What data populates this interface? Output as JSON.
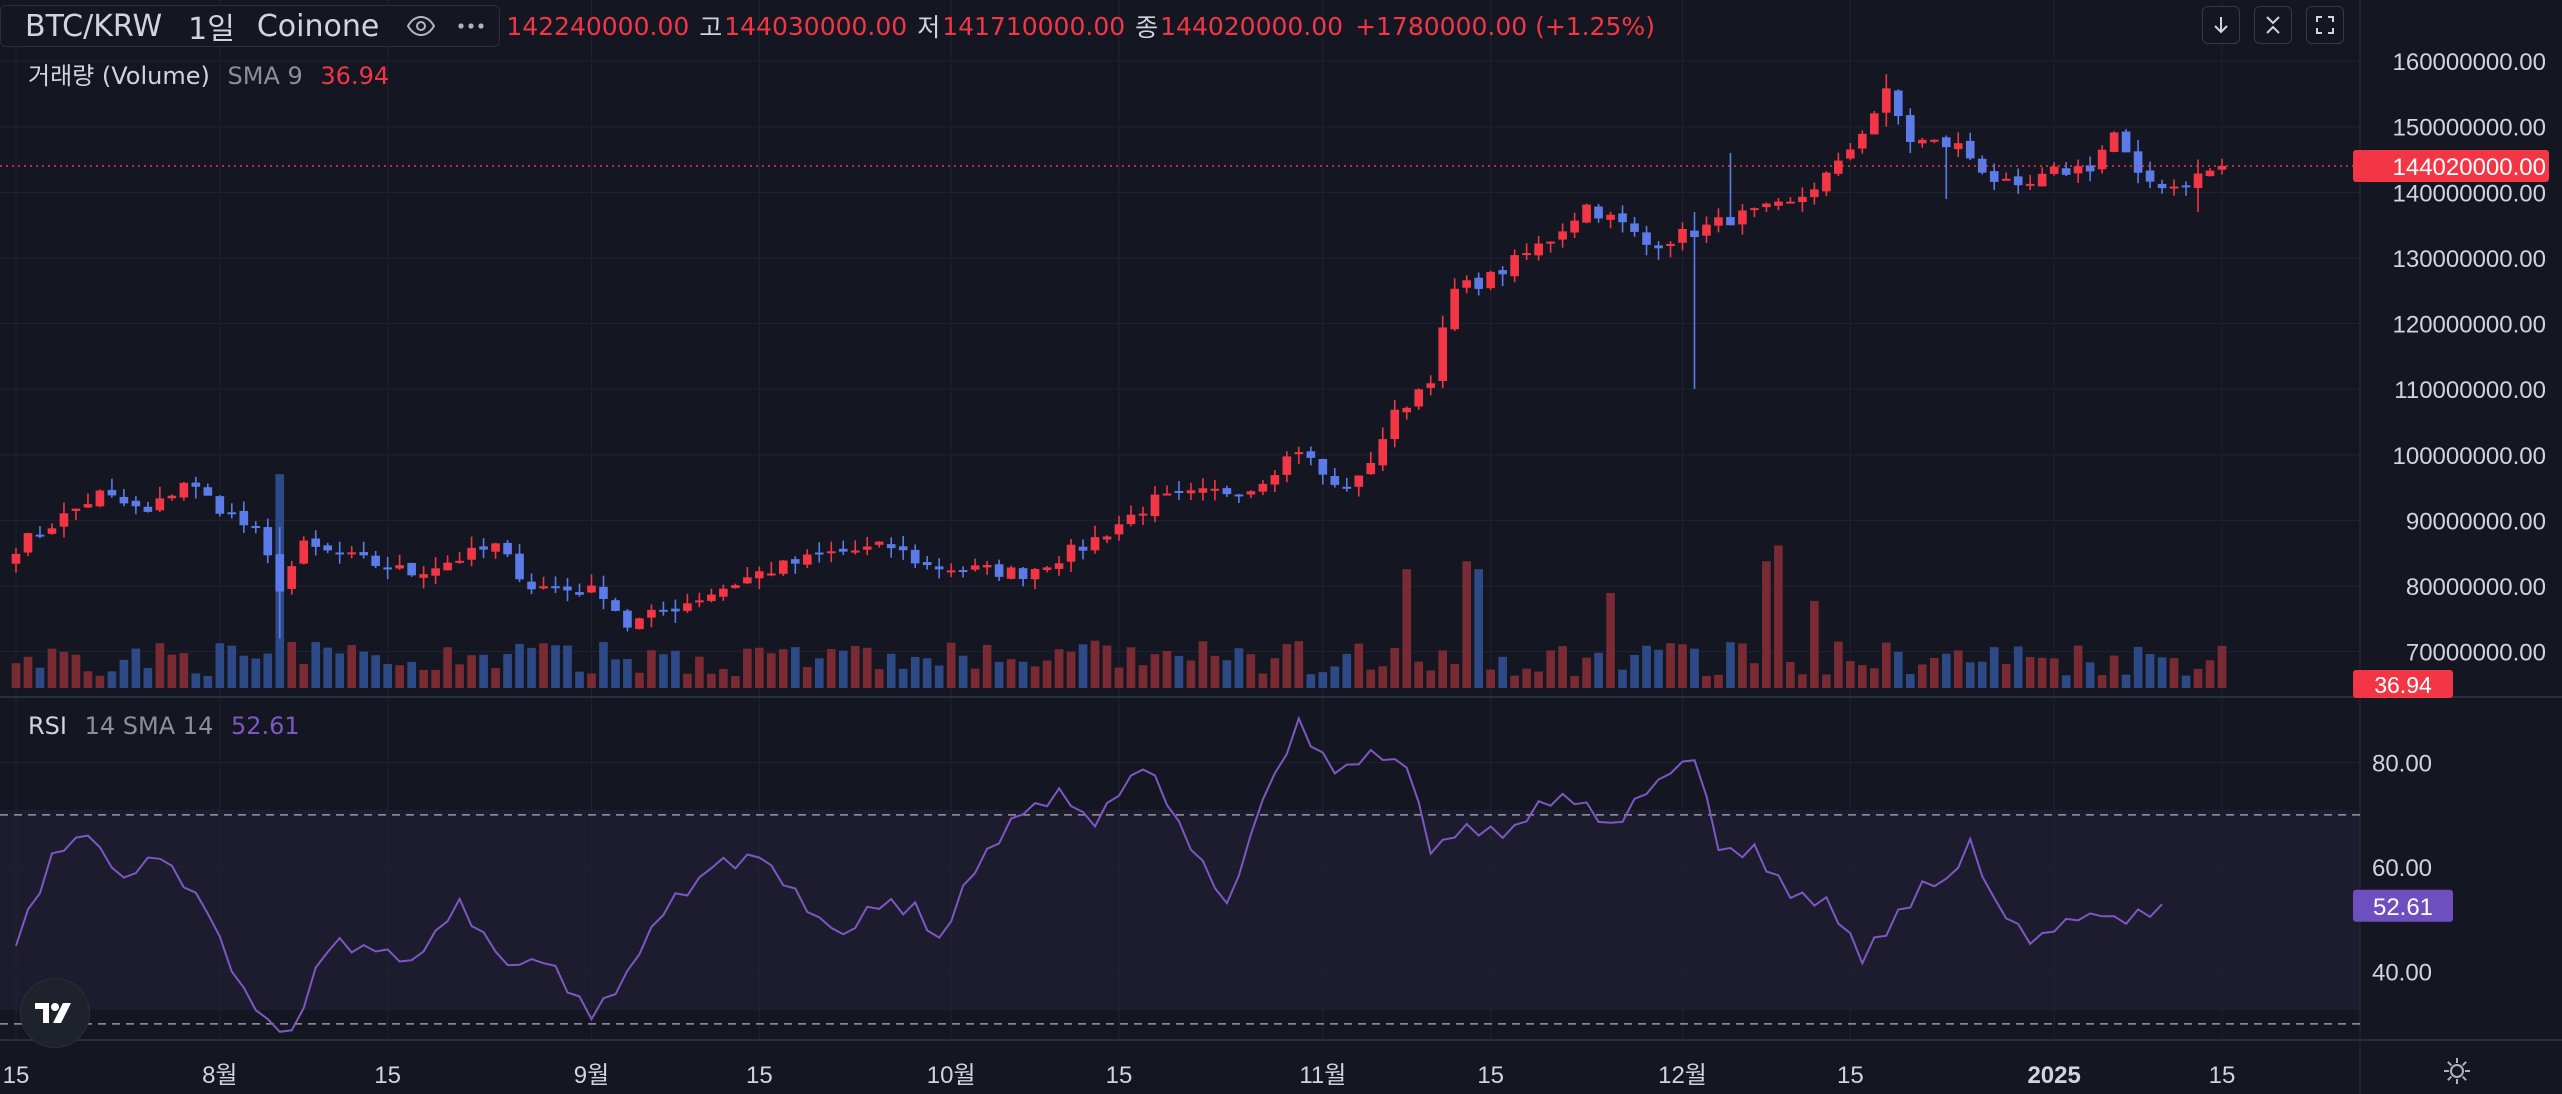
{
  "header": {
    "symbol": "BTC/KRW",
    "interval": "1일",
    "exchange": "Coinone",
    "eye_icon": "eye-icon",
    "more_icon": "more-icon",
    "open": "142240000.00",
    "high_label": "고",
    "high": "144030000.00",
    "low_label": "저",
    "low": "141710000.00",
    "close_label": "종",
    "close": "144020000.00",
    "change": "+1780000.00 (+1.25%)"
  },
  "toolbar": {
    "scroll_down_icon": "arrow-down-icon",
    "collapse_icon": "collapse-icon",
    "fullscreen_icon": "fullscreen-icon"
  },
  "volume_legend": {
    "name": "거래량 (Volume)",
    "params": "SMA 9",
    "value": "36.94"
  },
  "rsi_legend": {
    "name": "RSI",
    "params": "14 SMA 14",
    "value": "52.61"
  },
  "colors": {
    "up": "#f23645",
    "down": "#5b7be8",
    "volume_up": "#7a2a32",
    "volume_down": "#2e4a86",
    "rsi_line": "#7e57c2",
    "rsi_badge": "#6e4fc0",
    "background": "#141722",
    "grid": "#1f2330"
  },
  "price_axis": {
    "labels": [
      "160000000.00",
      "150000000.00",
      "140000000.00",
      "130000000.00",
      "120000000.00",
      "110000000.00",
      "100000000.00",
      "90000000.00",
      "80000000.00",
      "70000000.00"
    ],
    "values": [
      160000000,
      150000000,
      140000000,
      130000000,
      120000000,
      110000000,
      100000000,
      90000000,
      80000000,
      70000000
    ],
    "last_price_label": "144020000.00",
    "last_price": 144020000,
    "volume_badge": "36.94"
  },
  "rsi_axis": {
    "labels": [
      "80.00",
      "60.00",
      "40.00"
    ],
    "values": [
      80,
      60,
      40
    ],
    "upper_band": 70,
    "lower_band": 30,
    "last_value_label": "52.61",
    "last_value": 52.61
  },
  "time_axis": {
    "labels": [
      "15",
      "8월",
      "15",
      "9월",
      "15",
      "10월",
      "15",
      "11월",
      "15",
      "12월",
      "15",
      "2025",
      "15"
    ],
    "bar_index": [
      0,
      17,
      31,
      48,
      62,
      78,
      92,
      109,
      123,
      139,
      153,
      170,
      184
    ]
  },
  "chart_data": {
    "type": "candlestick",
    "interval": "1D",
    "bar_count": 185,
    "close_keypoints": [
      {
        "i": 0,
        "v": 86000000
      },
      {
        "i": 7,
        "v": 94000000
      },
      {
        "i": 11,
        "v": 91000000
      },
      {
        "i": 14,
        "v": 96000000
      },
      {
        "i": 20,
        "v": 88000000
      },
      {
        "i": 22,
        "v": 80000000
      },
      {
        "i": 24,
        "v": 86000000
      },
      {
        "i": 33,
        "v": 82000000
      },
      {
        "i": 40,
        "v": 86000000
      },
      {
        "i": 43,
        "v": 80000000
      },
      {
        "i": 49,
        "v": 79000000
      },
      {
        "i": 51,
        "v": 74000000
      },
      {
        "i": 58,
        "v": 79000000
      },
      {
        "i": 62,
        "v": 82000000
      },
      {
        "i": 68,
        "v": 85000000
      },
      {
        "i": 73,
        "v": 86000000
      },
      {
        "i": 76,
        "v": 83000000
      },
      {
        "i": 84,
        "v": 82000000
      },
      {
        "i": 89,
        "v": 86000000
      },
      {
        "i": 95,
        "v": 93000000
      },
      {
        "i": 103,
        "v": 95000000
      },
      {
        "i": 107,
        "v": 101000000
      },
      {
        "i": 110,
        "v": 95000000
      },
      {
        "i": 112,
        "v": 96000000
      },
      {
        "i": 115,
        "v": 106000000
      },
      {
        "i": 118,
        "v": 112000000
      },
      {
        "i": 120,
        "v": 125000000
      },
      {
        "i": 123,
        "v": 127000000
      },
      {
        "i": 128,
        "v": 133000000
      },
      {
        "i": 131,
        "v": 138000000
      },
      {
        "i": 134,
        "v": 135000000
      },
      {
        "i": 136,
        "v": 132000000
      },
      {
        "i": 140,
        "v": 134000000
      },
      {
        "i": 143,
        "v": 136000000
      },
      {
        "i": 148,
        "v": 138000000
      },
      {
        "i": 152,
        "v": 144000000
      },
      {
        "i": 156,
        "v": 155000000
      },
      {
        "i": 158,
        "v": 148000000
      },
      {
        "i": 162,
        "v": 147000000
      },
      {
        "i": 165,
        "v": 142000000
      },
      {
        "i": 167,
        "v": 140000000
      },
      {
        "i": 170,
        "v": 143000000
      },
      {
        "i": 173,
        "v": 144000000
      },
      {
        "i": 175,
        "v": 149000000
      },
      {
        "i": 177,
        "v": 142000000
      },
      {
        "i": 180,
        "v": 141000000
      },
      {
        "i": 184,
        "v": 144020000
      }
    ],
    "rsi_keypoints": [
      {
        "i": 0,
        "v": 45
      },
      {
        "i": 3,
        "v": 62
      },
      {
        "i": 6,
        "v": 67
      },
      {
        "i": 9,
        "v": 57
      },
      {
        "i": 12,
        "v": 63
      },
      {
        "i": 16,
        "v": 52
      },
      {
        "i": 19,
        "v": 36
      },
      {
        "i": 21,
        "v": 30
      },
      {
        "i": 23,
        "v": 28
      },
      {
        "i": 26,
        "v": 45
      },
      {
        "i": 29,
        "v": 45
      },
      {
        "i": 33,
        "v": 42
      },
      {
        "i": 37,
        "v": 53
      },
      {
        "i": 41,
        "v": 41
      },
      {
        "i": 44,
        "v": 43
      },
      {
        "i": 48,
        "v": 31
      },
      {
        "i": 51,
        "v": 40
      },
      {
        "i": 54,
        "v": 52
      },
      {
        "i": 58,
        "v": 60
      },
      {
        "i": 62,
        "v": 62
      },
      {
        "i": 67,
        "v": 50
      },
      {
        "i": 69,
        "v": 47
      },
      {
        "i": 72,
        "v": 53
      },
      {
        "i": 75,
        "v": 52
      },
      {
        "i": 77,
        "v": 46
      },
      {
        "i": 80,
        "v": 60
      },
      {
        "i": 84,
        "v": 71
      },
      {
        "i": 87,
        "v": 74
      },
      {
        "i": 90,
        "v": 68
      },
      {
        "i": 94,
        "v": 80
      },
      {
        "i": 96,
        "v": 73
      },
      {
        "i": 99,
        "v": 60
      },
      {
        "i": 101,
        "v": 52
      },
      {
        "i": 104,
        "v": 73
      },
      {
        "i": 107,
        "v": 87
      },
      {
        "i": 110,
        "v": 78
      },
      {
        "i": 113,
        "v": 81
      },
      {
        "i": 116,
        "v": 80
      },
      {
        "i": 118,
        "v": 64
      },
      {
        "i": 121,
        "v": 67
      },
      {
        "i": 124,
        "v": 66
      },
      {
        "i": 127,
        "v": 72
      },
      {
        "i": 130,
        "v": 73
      },
      {
        "i": 133,
        "v": 68
      },
      {
        "i": 135,
        "v": 72
      },
      {
        "i": 138,
        "v": 78
      },
      {
        "i": 140,
        "v": 81
      },
      {
        "i": 142,
        "v": 64
      },
      {
        "i": 145,
        "v": 63
      },
      {
        "i": 148,
        "v": 55
      },
      {
        "i": 151,
        "v": 53
      },
      {
        "i": 154,
        "v": 43
      },
      {
        "i": 156,
        "v": 48
      },
      {
        "i": 159,
        "v": 56
      },
      {
        "i": 161,
        "v": 57
      },
      {
        "i": 163,
        "v": 64
      },
      {
        "i": 165,
        "v": 53
      },
      {
        "i": 168,
        "v": 46
      },
      {
        "i": 171,
        "v": 50
      },
      {
        "i": 173,
        "v": 51
      },
      {
        "i": 176,
        "v": 50
      },
      {
        "i": 179,
        "v": 52.61
      }
    ],
    "notable_wicks": [
      {
        "i": 22,
        "low": 72000000,
        "high": 89000000
      },
      {
        "i": 140,
        "low": 110000000,
        "high": 137000000
      },
      {
        "i": 143,
        "low": 136000000,
        "high": 146000000
      },
      {
        "i": 156,
        "low": 150000000,
        "high": 158000000
      },
      {
        "i": 161,
        "low": 139000000,
        "high": 146000000
      },
      {
        "i": 182,
        "low": 137000000,
        "high": 145000000
      }
    ],
    "volume_spikes": [
      {
        "i": 22,
        "value": 27
      },
      {
        "i": 116,
        "value": 15
      },
      {
        "i": 121,
        "value": 16
      },
      {
        "i": 122,
        "value": 15
      },
      {
        "i": 133,
        "value": 12
      },
      {
        "i": 146,
        "value": 16
      },
      {
        "i": 147,
        "value": 18
      },
      {
        "i": 150,
        "value": 11
      }
    ],
    "volume_sma_last": 36.94,
    "price_ylim": [
      64000000,
      162000000
    ],
    "rsi_ylim": [
      25,
      92
    ],
    "grid": true
  }
}
